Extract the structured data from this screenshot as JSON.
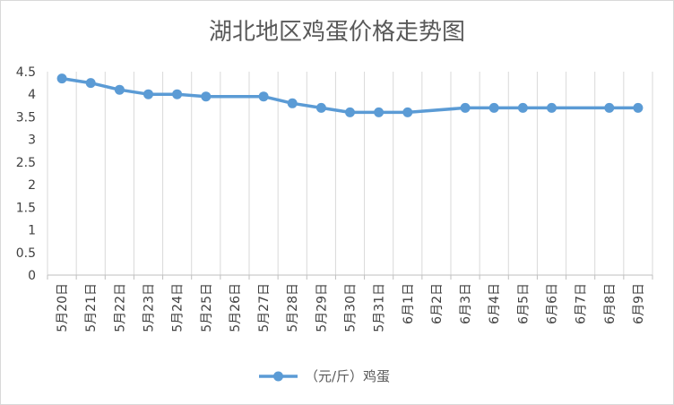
{
  "chart_data": {
    "type": "line",
    "title": "湖北地区鸡蛋价格走势图",
    "xlabel": "",
    "ylabel": "",
    "categories": [
      "5月20日",
      "5月21日",
      "5月22日",
      "5月23日",
      "5月24日",
      "5月25日",
      "5月26日",
      "5月27日",
      "5月28日",
      "5月29日",
      "5月30日",
      "5月31日",
      "6月1日",
      "6月2日",
      "6月3日",
      "6月4日",
      "6月5日",
      "6月6日",
      "6月7日",
      "6月8日",
      "6月9日"
    ],
    "series": [
      {
        "name": "（元/斤）鸡蛋",
        "color": "#5B9BD5",
        "values": [
          4.35,
          4.25,
          4.1,
          4.0,
          4.0,
          3.95,
          null,
          3.95,
          3.8,
          3.7,
          3.6,
          3.6,
          3.6,
          null,
          3.7,
          3.7,
          3.7,
          3.7,
          null,
          3.7,
          3.7
        ]
      }
    ],
    "ylim": [
      0,
      4.5
    ],
    "yticks": [
      "0",
      "0.5",
      "1",
      "1.5",
      "2",
      "2.5",
      "3",
      "3.5",
      "4",
      "4.5"
    ],
    "grid": "vertical",
    "legend_position": "bottom"
  }
}
